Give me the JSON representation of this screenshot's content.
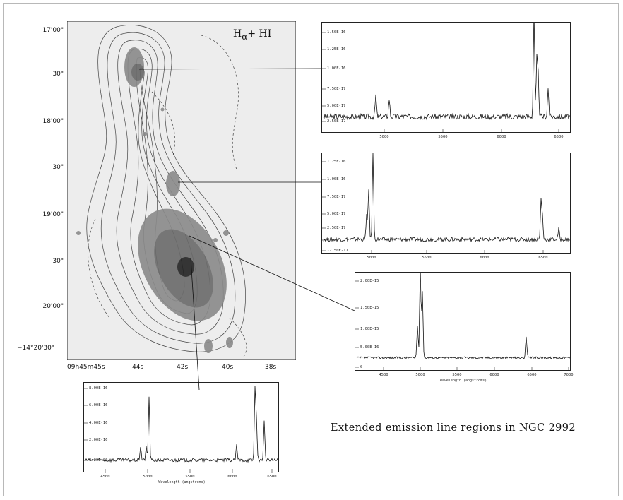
{
  "caption": "Extended emission line regions in NGC 2992",
  "map": {
    "title_main": "H",
    "title_sub": "α",
    "title_rest": "+ HI",
    "dec_labels": [
      "17'00\"",
      "30\"",
      "18'00\"",
      "30\"",
      "19'00\"",
      "30\"",
      "20'00\"",
      "−14°20'30\""
    ],
    "ra_labels": [
      "09h45m45s",
      "44s",
      "42s",
      "40s",
      "38s"
    ],
    "colors": {
      "background": "#ededed",
      "contour": "#444444",
      "emission": "#8a8a8a"
    }
  },
  "spectra": [
    {
      "id": "spectrum-north",
      "y_ticks": [
        "1.50E-16",
        "1.25E-16",
        "1.00E-16",
        "7.50E-17",
        "5.00E-17",
        "2.50E-17"
      ],
      "x_ticks": [
        "5000",
        "5500",
        "6000",
        "6500"
      ],
      "xlabel": ""
    },
    {
      "id": "spectrum-mid",
      "y_ticks": [
        "1.25E-16",
        "1.00E-16",
        "7.50E-17",
        "5.00E-17",
        "2.50E-17",
        "0",
        "-2.50E-17"
      ],
      "x_ticks": [
        "5000",
        "5500",
        "6000",
        "6500"
      ],
      "xlabel": ""
    },
    {
      "id": "spectrum-nucleus",
      "y_ticks": [
        "2.00E-15",
        "1.50E-15",
        "1.00E-15",
        "5.00E-16",
        "0"
      ],
      "x_ticks": [
        "4500",
        "5000",
        "5500",
        "6000",
        "6500",
        "7000"
      ],
      "xlabel": "Wavelength (angstroms)"
    },
    {
      "id": "spectrum-south",
      "y_ticks": [
        "8.00E-16",
        "6.00E-16",
        "4.00E-16",
        "2.00E-16",
        "0.00E+00"
      ],
      "x_ticks": [
        "4500",
        "5000",
        "5500",
        "6000",
        "6500"
      ],
      "xlabel": "Wavelength (angstroms)"
    }
  ]
}
